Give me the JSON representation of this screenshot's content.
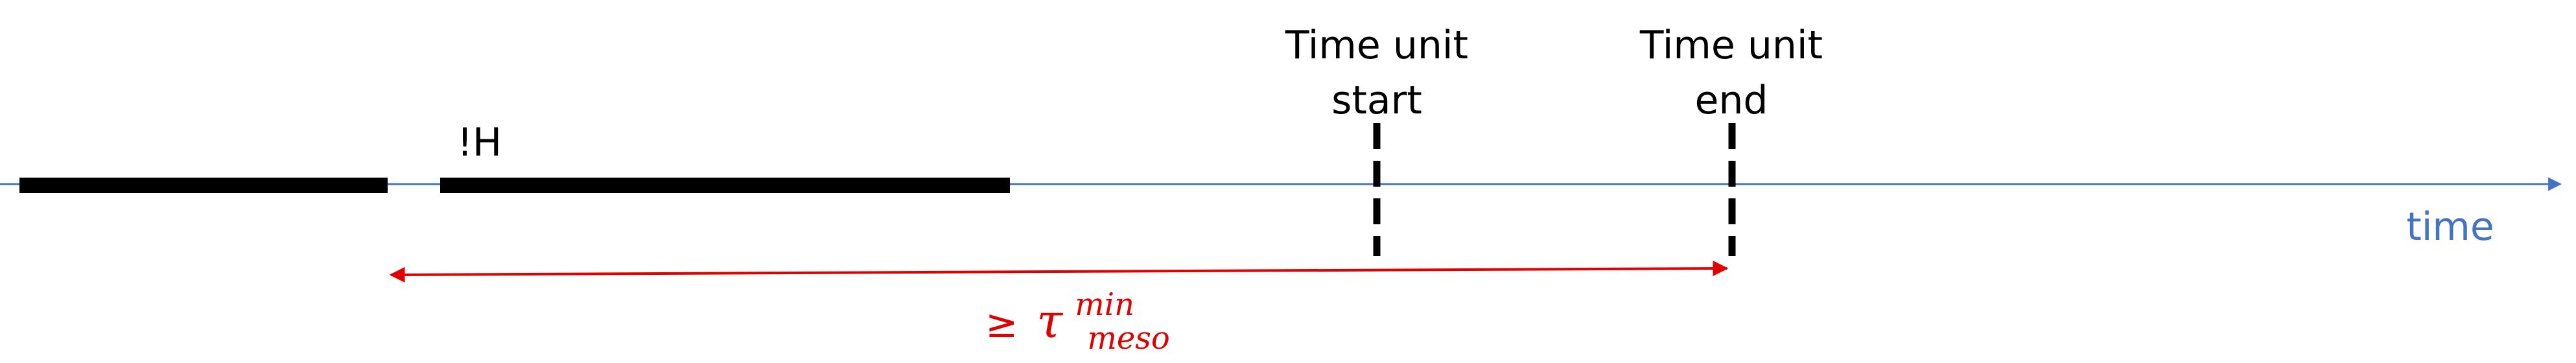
{
  "labels": {
    "hazard": "!H",
    "unit_start": [
      "Time unit",
      "start"
    ],
    "unit_end": [
      "Time unit",
      "end"
    ],
    "axis": "time"
  },
  "duration": {
    "relation": "≥",
    "symbol": "τ",
    "superscript": "min",
    "subscript": "meso"
  }
}
